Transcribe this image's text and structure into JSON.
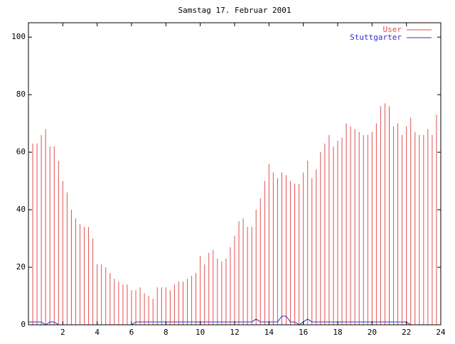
{
  "chart_data": {
    "type": "line",
    "title": "Samstag 17. Februar 2001",
    "x": [
      0,
      0.25,
      0.5,
      0.75,
      1,
      1.25,
      1.5,
      1.75,
      2,
      2.25,
      2.5,
      2.75,
      3,
      3.25,
      3.5,
      3.75,
      4,
      4.25,
      4.5,
      4.75,
      5,
      5.25,
      5.5,
      5.75,
      6,
      6.25,
      6.5,
      6.75,
      7,
      7.25,
      7.5,
      7.75,
      8,
      8.25,
      8.5,
      8.75,
      9,
      9.25,
      9.5,
      9.75,
      10,
      10.25,
      10.5,
      10.75,
      11,
      11.25,
      11.5,
      11.75,
      12,
      12.25,
      12.5,
      12.75,
      13,
      13.25,
      13.5,
      13.75,
      14,
      14.25,
      14.5,
      14.75,
      15,
      15.25,
      15.5,
      15.75,
      16,
      16.25,
      16.5,
      16.75,
      17,
      17.25,
      17.5,
      17.75,
      18,
      18.25,
      18.5,
      18.75,
      19,
      19.25,
      19.5,
      19.75,
      20,
      20.25,
      20.5,
      20.75,
      21,
      21.25,
      21.5,
      21.75,
      22,
      22.25,
      22.5,
      22.75,
      23,
      23.25,
      23.5,
      23.75
    ],
    "series": [
      {
        "name": "User",
        "color": "#e05050",
        "style": "impulses",
        "values": [
          62,
          63,
          63,
          66,
          68,
          62,
          62,
          57,
          50,
          46,
          40,
          37,
          35,
          34,
          34,
          30,
          21,
          21,
          20,
          18,
          16,
          15,
          14,
          14,
          12,
          12,
          13,
          11,
          10,
          9,
          13,
          13,
          13,
          12,
          14,
          15,
          15,
          16,
          17,
          18,
          24,
          21,
          25,
          26,
          23,
          22,
          23,
          27,
          31,
          36,
          37,
          34,
          34,
          40,
          44,
          50,
          56,
          53,
          51,
          53,
          52,
          50,
          49,
          49,
          53,
          57,
          51,
          54,
          60,
          63,
          66,
          62,
          64,
          65,
          70,
          69,
          68,
          67,
          66,
          66,
          67,
          70,
          76,
          77,
          76,
          69,
          70,
          66,
          69,
          72,
          67,
          66,
          66,
          68,
          66,
          73
        ]
      },
      {
        "name": "Stuttgarter",
        "color": "#3030d0",
        "style": "lines",
        "values": [
          1,
          1,
          1,
          1,
          0,
          1,
          1,
          0,
          0,
          0,
          0,
          0,
          0,
          0,
          0,
          0,
          0,
          0,
          0,
          0,
          0,
          0,
          0,
          0,
          0,
          1,
          1,
          1,
          1,
          1,
          1,
          1,
          1,
          1,
          1,
          1,
          1,
          1,
          1,
          1,
          1,
          1,
          1,
          1,
          1,
          1,
          1,
          1,
          1,
          1,
          1,
          1,
          1,
          2,
          1,
          1,
          1,
          1,
          1,
          3,
          3,
          1,
          1,
          0,
          1,
          2,
          1,
          1,
          1,
          1,
          1,
          1,
          1,
          1,
          1,
          1,
          1,
          1,
          1,
          1,
          1,
          1,
          1,
          1,
          1,
          1,
          1,
          1,
          1,
          0,
          0,
          0,
          0,
          0,
          0,
          0
        ]
      }
    ],
    "xlim": [
      0,
      24
    ],
    "xticks": [
      2,
      4,
      6,
      8,
      10,
      12,
      14,
      16,
      18,
      20,
      22,
      24
    ],
    "ylim": [
      0,
      105
    ],
    "yticks": [
      0,
      20,
      40,
      60,
      80,
      100
    ],
    "legend": "top-right"
  }
}
